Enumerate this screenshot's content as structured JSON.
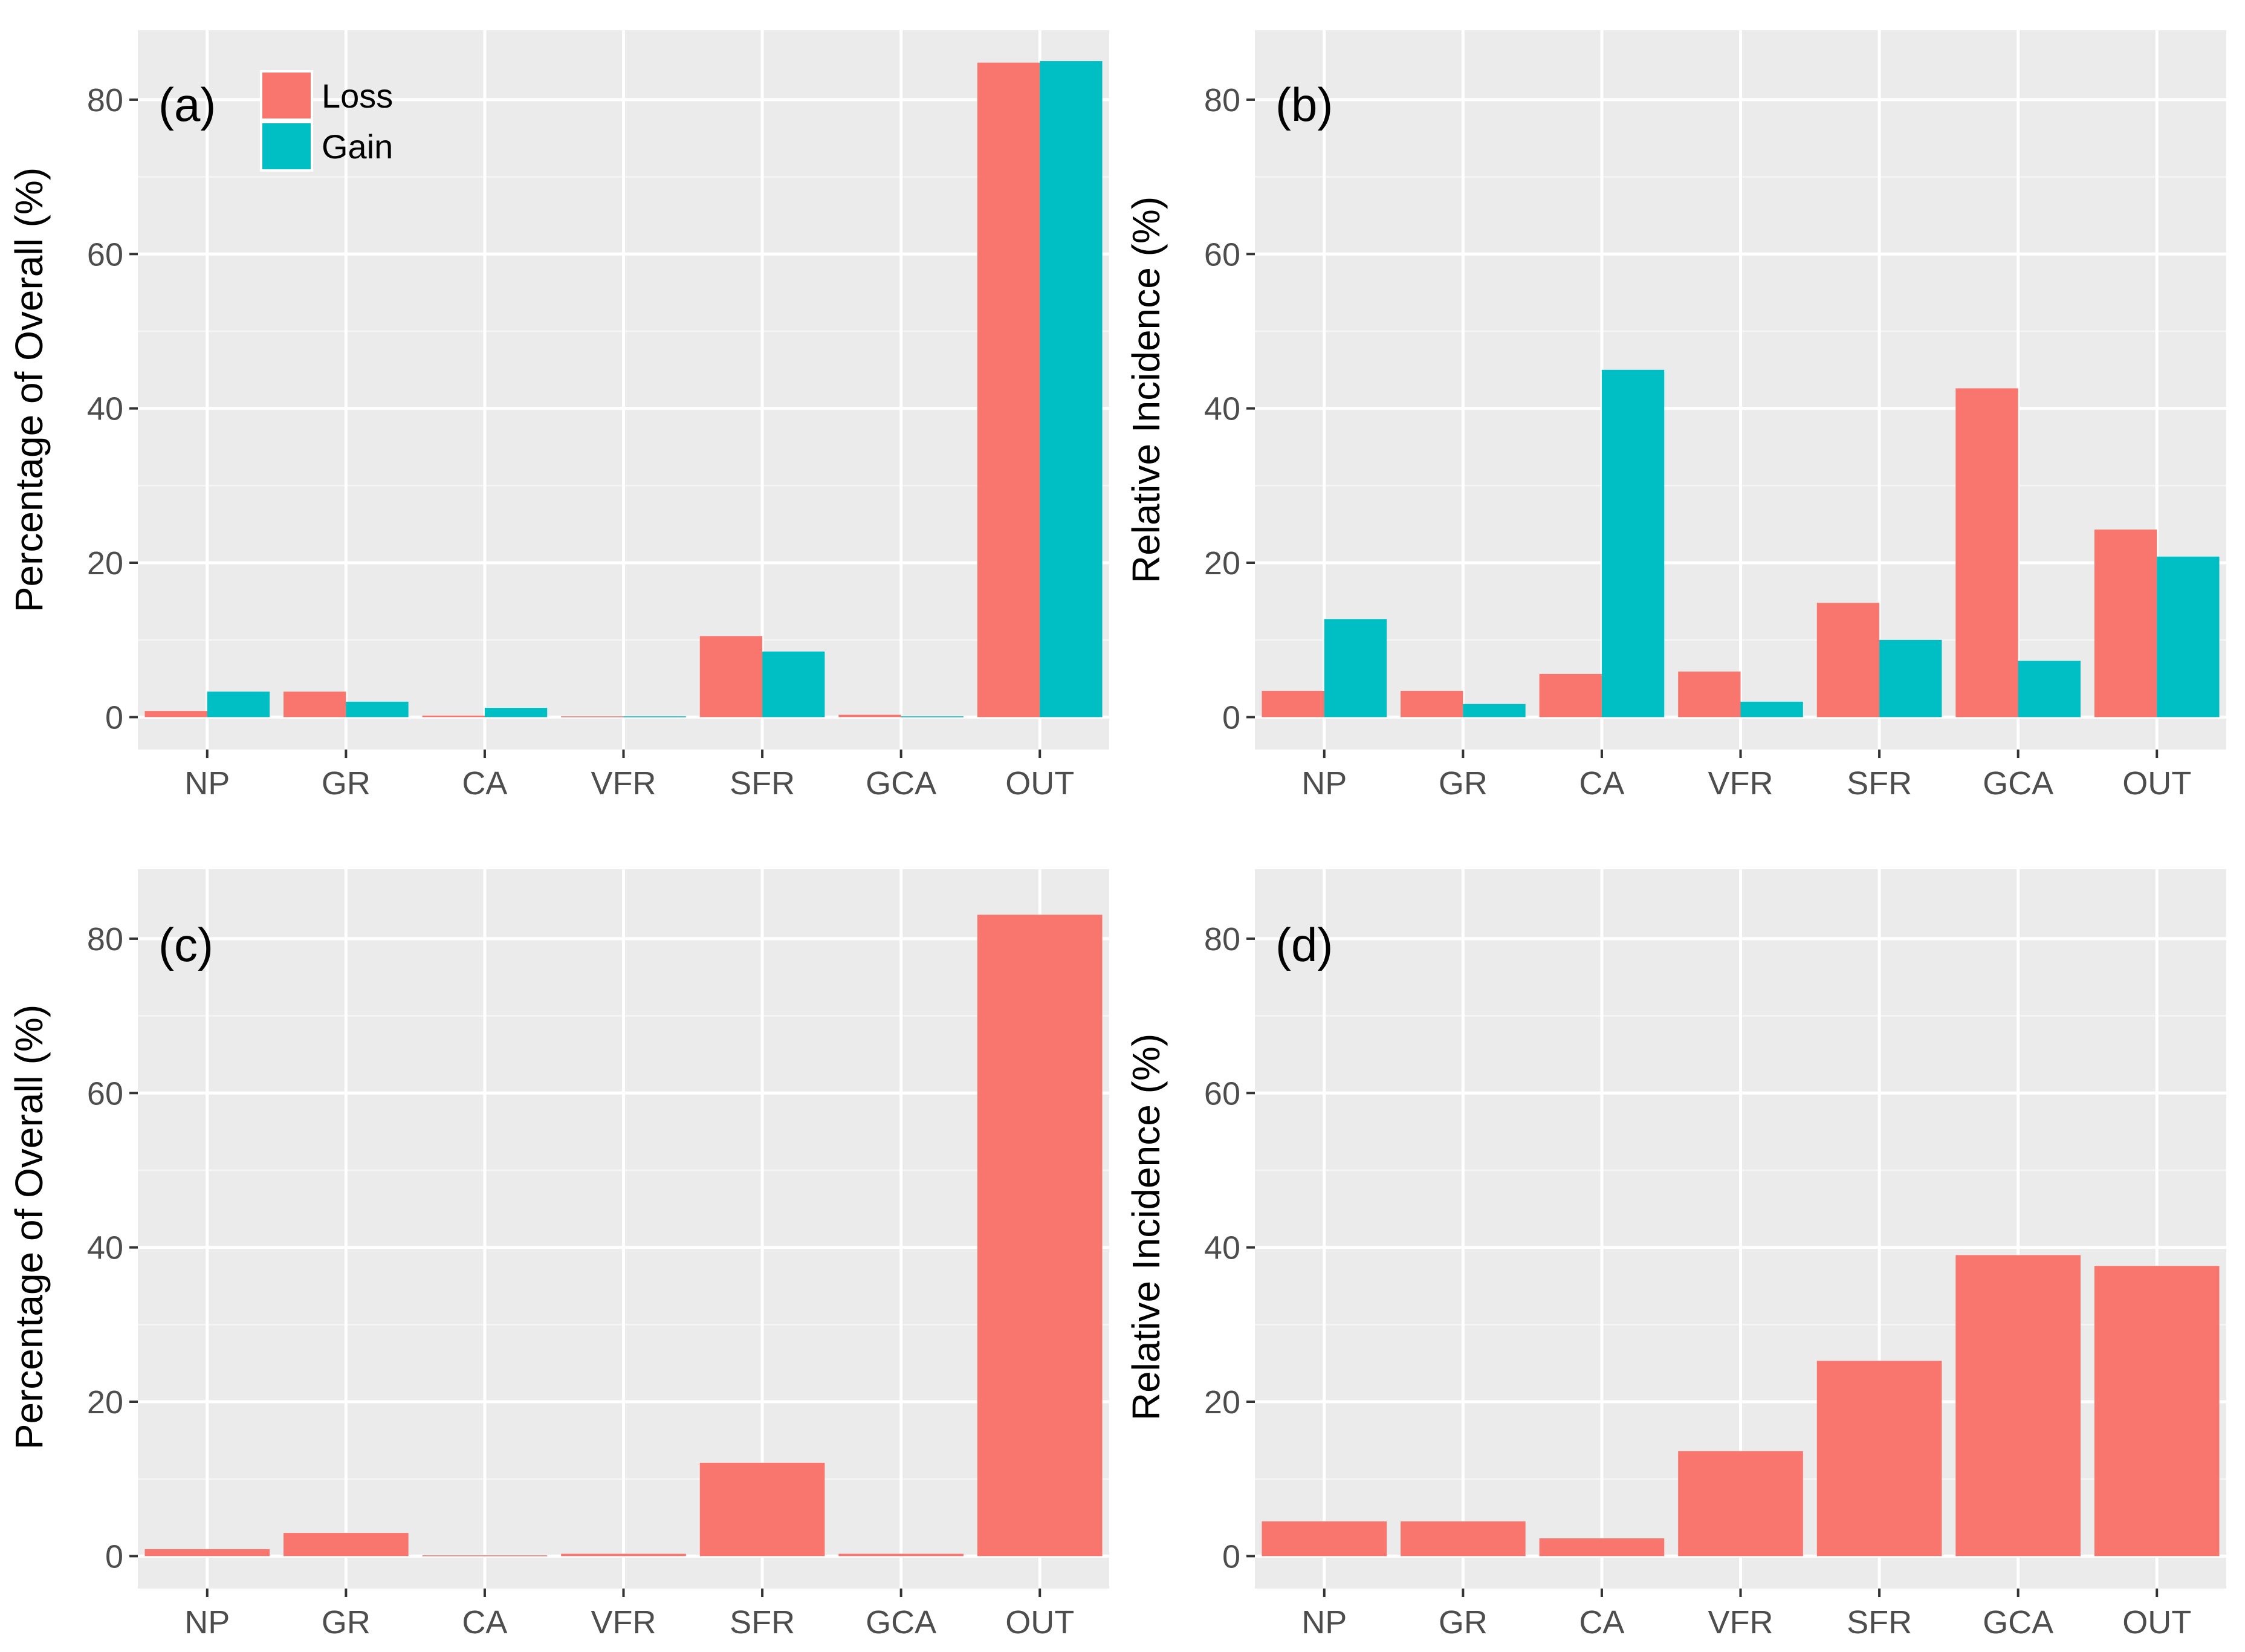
{
  "colors": {
    "loss": "#f8766d",
    "gain": "#00bfc4"
  },
  "legend": {
    "items": [
      {
        "label": "Loss",
        "color": "#f8766d"
      },
      {
        "label": "Gain",
        "color": "#00bfc4"
      }
    ]
  },
  "chart_data": [
    {
      "panel": "(a)",
      "type": "bar",
      "categories": [
        "NP",
        "GR",
        "CA",
        "VFR",
        "SFR",
        "GCA",
        "OUT"
      ],
      "series": [
        {
          "name": "Loss",
          "values": [
            0.8,
            3.3,
            0.2,
            0.1,
            10.5,
            0.3,
            84.8
          ]
        },
        {
          "name": "Gain",
          "values": [
            3.3,
            2.0,
            1.2,
            0.1,
            8.5,
            0.1,
            85.0
          ]
        }
      ],
      "xlabel": "",
      "ylabel": "Percentage of Overall (%)",
      "ylim": [
        -4.2,
        89
      ],
      "yticks": [
        0,
        20,
        40,
        60,
        80
      ],
      "legend": "top-left",
      "grid": true
    },
    {
      "panel": "(b)",
      "type": "bar",
      "categories": [
        "NP",
        "GR",
        "CA",
        "VFR",
        "SFR",
        "GCA",
        "OUT"
      ],
      "series": [
        {
          "name": "Loss",
          "values": [
            3.4,
            3.4,
            5.6,
            5.9,
            14.8,
            42.6,
            24.3
          ]
        },
        {
          "name": "Gain",
          "values": [
            12.7,
            1.7,
            45.0,
            2.0,
            10.0,
            7.3,
            20.8
          ]
        }
      ],
      "xlabel": "",
      "ylabel": "Relative Incidence (%)",
      "ylim": [
        -4.2,
        89
      ],
      "yticks": [
        0,
        20,
        40,
        60,
        80
      ],
      "grid": true
    },
    {
      "panel": "(c)",
      "type": "bar",
      "categories": [
        "NP",
        "GR",
        "CA",
        "VFR",
        "SFR",
        "GCA",
        "OUT"
      ],
      "series": [
        {
          "name": "Loss",
          "values": [
            0.9,
            3.0,
            0.1,
            0.3,
            12.1,
            0.3,
            83.1
          ]
        }
      ],
      "xlabel": "",
      "ylabel": "Percentage of Overall (%)",
      "ylim": [
        -4.2,
        89
      ],
      "yticks": [
        0,
        20,
        40,
        60,
        80
      ],
      "grid": true
    },
    {
      "panel": "(d)",
      "type": "bar",
      "categories": [
        "NP",
        "GR",
        "CA",
        "VFR",
        "SFR",
        "GCA",
        "OUT"
      ],
      "series": [
        {
          "name": "Loss",
          "values": [
            4.5,
            4.5,
            2.3,
            13.6,
            25.3,
            39.0,
            37.6
          ]
        }
      ],
      "xlabel": "",
      "ylabel": "Relative Incidence (%)",
      "ylim": [
        -4.2,
        89
      ],
      "yticks": [
        0,
        20,
        40,
        60,
        80
      ],
      "grid": true
    }
  ]
}
